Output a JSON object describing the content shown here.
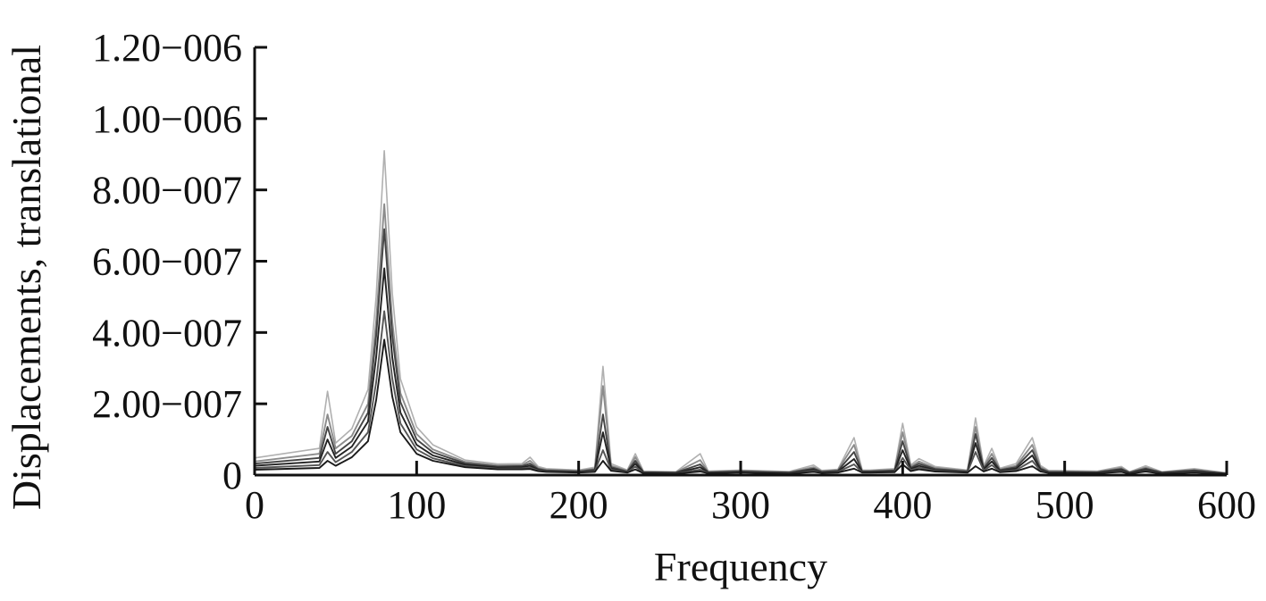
{
  "chart_data": {
    "type": "line",
    "xlabel": "Frequency",
    "ylabel": "Displacements, translational",
    "xlim": [
      0,
      600
    ],
    "ylim": [
      0,
      1.2e-06
    ],
    "grid": false,
    "legend": "none",
    "x_ticks": [
      {
        "value": 0,
        "label": "0"
      },
      {
        "value": 100,
        "label": "100"
      },
      {
        "value": 200,
        "label": "200"
      },
      {
        "value": 300,
        "label": "300"
      },
      {
        "value": 400,
        "label": "400"
      },
      {
        "value": 500,
        "label": "500"
      },
      {
        "value": 600,
        "label": "600"
      }
    ],
    "y_ticks": [
      {
        "value": 0,
        "label": "0"
      },
      {
        "value": 2e-07,
        "label": "2.00−007"
      },
      {
        "value": 4e-07,
        "label": "4.00−007"
      },
      {
        "value": 6e-07,
        "label": "6.00−007"
      },
      {
        "value": 8e-07,
        "label": "8.00−007"
      },
      {
        "value": 1e-06,
        "label": "1.00−006"
      },
      {
        "value": 1.2e-06,
        "label": "1.20−006"
      }
    ],
    "x": [
      0,
      40,
      45,
      50,
      60,
      70,
      75,
      80,
      85,
      90,
      100,
      110,
      130,
      150,
      165,
      170,
      175,
      180,
      200,
      210,
      215,
      220,
      230,
      235,
      240,
      260,
      275,
      280,
      300,
      330,
      345,
      350,
      360,
      370,
      375,
      380,
      395,
      400,
      405,
      410,
      420,
      440,
      445,
      450,
      455,
      460,
      470,
      480,
      485,
      490,
      520,
      535,
      540,
      550,
      560,
      580,
      600
    ],
    "series": [
      {
        "color": "#b0b0b0",
        "values": [
          4.8e-08,
          7.5e-08,
          2.35e-07,
          9e-08,
          1.3e-07,
          2.4e-07,
          5e-07,
          9.1e-07,
          5.1e-07,
          2.7e-07,
          1.35e-07,
          8.5e-08,
          4.2e-08,
          3.1e-08,
          3.2e-08,
          5e-08,
          2.4e-08,
          1.8e-08,
          1.4e-08,
          2.2e-08,
          3.05e-07,
          3.2e-08,
          1.4e-08,
          6e-08,
          1.1e-08,
          9e-09,
          6e-08,
          1.1e-08,
          1.4e-08,
          1e-08,
          2.8e-08,
          1.3e-08,
          1.6e-08,
          1.05e-07,
          1.4e-08,
          1.4e-08,
          1.8e-08,
          1.45e-07,
          2.8e-08,
          4.6e-08,
          2.4e-08,
          1.4e-08,
          1.6e-07,
          2.6e-08,
          7.5e-08,
          1.9e-08,
          3.2e-08,
          1.05e-07,
          2.7e-08,
          1.3e-08,
          1.1e-08,
          2.4e-08,
          9e-09,
          2.6e-08,
          9e-09,
          1.8e-08,
          6e-09
        ]
      },
      {
        "color": "#8c8c8c",
        "values": [
          3.8e-08,
          6e-08,
          1.7e-07,
          7.5e-08,
          1.1e-07,
          2e-07,
          4.3e-07,
          7.6e-07,
          4.3e-07,
          2.3e-07,
          1.15e-07,
          7.2e-08,
          3.7e-08,
          2.7e-08,
          2.8e-08,
          4e-08,
          2e-08,
          1.5e-08,
          1.2e-08,
          1.8e-08,
          2.5e-07,
          2.6e-08,
          1.2e-08,
          5e-08,
          9e-09,
          8e-09,
          4.2e-08,
          9e-09,
          1.2e-08,
          8e-09,
          2.2e-08,
          1.1e-08,
          1.4e-08,
          8.5e-08,
          1.2e-08,
          1.2e-08,
          1.5e-08,
          1.2e-07,
          2.4e-08,
          3.8e-08,
          2e-08,
          1.2e-08,
          1.35e-07,
          2.2e-08,
          6e-08,
          1.6e-08,
          2.6e-08,
          8.5e-08,
          2.2e-08,
          1.1e-08,
          9e-09,
          2e-08,
          8e-09,
          2.1e-08,
          8e-09,
          1.5e-08,
          5e-09
        ]
      },
      {
        "color": "#444444",
        "values": [
          3.2e-08,
          4.8e-08,
          1.35e-07,
          6e-08,
          9.5e-08,
          1.75e-07,
          3.9e-07,
          6.9e-07,
          3.9e-07,
          2.05e-07,
          1e-07,
          6.4e-08,
          3.3e-08,
          2.4e-08,
          2.5e-08,
          3.2e-08,
          1.7e-08,
          1.3e-08,
          1e-08,
          1.5e-08,
          1.7e-07,
          2.2e-08,
          1e-08,
          4e-08,
          8e-09,
          7e-09,
          3e-08,
          8e-09,
          1e-08,
          7e-09,
          1.8e-08,
          9e-09,
          1.2e-08,
          6.5e-08,
          1e-08,
          1e-08,
          1.3e-08,
          9.5e-08,
          2e-08,
          3.2e-08,
          1.7e-08,
          1e-08,
          1.15e-07,
          1.9e-08,
          4.8e-08,
          1.4e-08,
          2.2e-08,
          7e-08,
          1.8e-08,
          9e-09,
          8e-09,
          1.7e-08,
          7e-09,
          1.8e-08,
          7e-09,
          1.3e-08,
          4e-09
        ]
      },
      {
        "color": "#222222",
        "values": [
          2.6e-08,
          3.8e-08,
          1e-07,
          4.8e-08,
          8e-08,
          1.5e-07,
          3.3e-07,
          5.8e-07,
          3.3e-07,
          1.75e-07,
          8.5e-08,
          5.5e-08,
          2.9e-08,
          2.1e-08,
          2.2e-08,
          2.6e-08,
          1.5e-08,
          1.1e-08,
          9e-09,
          1.3e-08,
          1.2e-07,
          1.8e-08,
          9e-09,
          3.2e-08,
          7e-09,
          6e-09,
          2.2e-08,
          7e-09,
          9e-09,
          6e-09,
          1.5e-08,
          8e-09,
          1e-08,
          4.5e-08,
          9e-09,
          9e-09,
          1.1e-08,
          7e-08,
          1.7e-08,
          2.6e-08,
          1.4e-08,
          9e-09,
          9e-08,
          1.6e-08,
          3.8e-08,
          1.2e-08,
          1.8e-08,
          5.5e-08,
          1.5e-08,
          8e-09,
          7e-09,
          1.4e-08,
          6e-09,
          1.5e-08,
          6e-09,
          1.1e-08,
          4e-09
        ]
      },
      {
        "color": "#555555",
        "values": [
          2e-08,
          2.8e-08,
          6.5e-08,
          3.6e-08,
          6.5e-08,
          1.2e-07,
          2.6e-07,
          4.6e-07,
          2.7e-07,
          1.45e-07,
          7.2e-08,
          4.7e-08,
          2.5e-08,
          1.8e-08,
          1.9e-08,
          2.1e-08,
          1.3e-08,
          1e-08,
          8e-09,
          1.1e-08,
          7e-08,
          1.5e-08,
          8e-09,
          2.4e-08,
          6e-09,
          5e-09,
          1.5e-08,
          6e-09,
          8e-09,
          5e-09,
          1.2e-08,
          7e-09,
          9e-09,
          3e-08,
          8e-09,
          8e-09,
          9e-09,
          4.8e-08,
          1.4e-08,
          2.1e-08,
          1.2e-08,
          8e-09,
          6.5e-08,
          1.3e-08,
          2.8e-08,
          1e-08,
          1.4e-08,
          4e-08,
          1.2e-08,
          7e-09,
          6e-09,
          1.1e-08,
          5e-09,
          1.2e-08,
          5e-09,
          9e-09,
          3e-09
        ]
      },
      {
        "color": "#1a1a1a",
        "values": [
          1.5e-08,
          2e-08,
          4e-08,
          2.6e-08,
          5e-08,
          9.5e-08,
          2.1e-07,
          3.8e-07,
          2.2e-07,
          1.2e-07,
          6e-08,
          4e-08,
          2.2e-08,
          1.6e-08,
          1.6e-08,
          1.7e-08,
          1.1e-08,
          9e-09,
          7e-09,
          9e-09,
          4e-08,
          1.2e-08,
          7e-09,
          1.6e-08,
          5e-09,
          4e-09,
          1e-08,
          5e-09,
          7e-09,
          4e-09,
          9e-09,
          6e-09,
          7e-09,
          1.8e-08,
          7e-09,
          7e-09,
          8e-09,
          3e-08,
          1.1e-08,
          1.6e-08,
          1e-08,
          7e-09,
          2.5e-08,
          1e-08,
          1.8e-08,
          8e-09,
          1.1e-08,
          2.5e-08,
          1e-08,
          6e-09,
          5e-09,
          9e-09,
          4e-09,
          1e-08,
          4e-09,
          7e-09,
          3e-09
        ]
      }
    ]
  }
}
